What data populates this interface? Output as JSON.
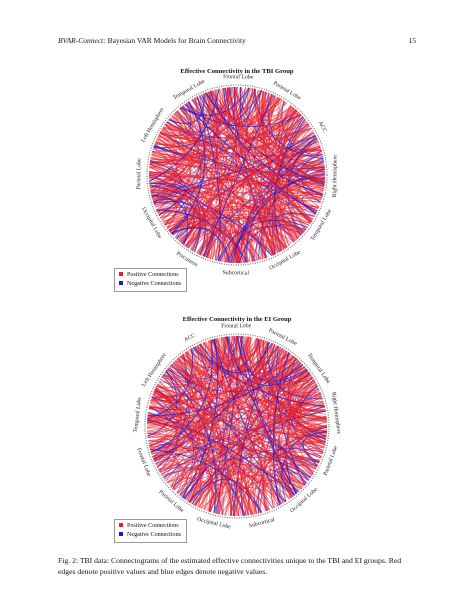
{
  "header": {
    "journal": "BVAR-Connect:",
    "title": "Bayesian VAR Models for Brain Connectivity",
    "page_number": "15"
  },
  "figures": [
    {
      "title": "Effective Connectivity in the TBI Group",
      "regions": [
        "Frontal Lobe",
        "Parietal Lobe",
        "ACC",
        "Right Hemisphere",
        "Temporal Lobe",
        "Occipital Lobe",
        "Subcortical",
        "Precuneus",
        "Occipital Lobe",
        "Parietal Lobe",
        "Left Hemisphere",
        "Temporal Lobe"
      ],
      "legend": {
        "positive": "Positive Connections",
        "negative": "Negative Connections"
      }
    },
    {
      "title": "Effective Connectivity in the EI Group",
      "regions": [
        "Frontal Lobe",
        "Parietal Lobe",
        "Temporal Lobe",
        "Right Hemisphere",
        "Parietal Lobe",
        "Occipital Lobe",
        "Subcortical",
        "Occipital Lobe",
        "Parietal Lobe",
        "Frontal Lobe",
        "Temporal Lobe",
        "Left Hemisphere",
        "ACC"
      ],
      "legend": {
        "positive": "Positive Connections",
        "negative": "Negative Connections"
      }
    }
  ],
  "colors": {
    "positive": "#e8202e",
    "negative": "#1a1ad6"
  },
  "caption": "Fig. 2: TBI data: Connectograms of the estimated effective connectivities unique to the TBI and EI groups. Red edges denote positive values and blue edges denote negative values."
}
